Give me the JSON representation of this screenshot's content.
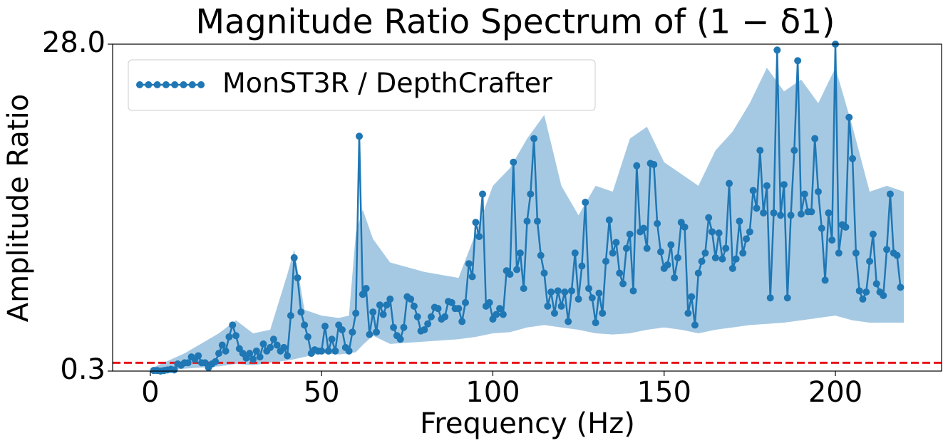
{
  "chart_data": {
    "type": "line",
    "title": "Magnitude Ratio Spectrum of (1 − δ1)",
    "xlabel": "Frequency (Hz)",
    "ylabel": "Amplitude Ratio",
    "xlim": [
      -11,
      231
    ],
    "ylim": [
      0.3,
      28
    ],
    "xticks": [
      0,
      50,
      100,
      150,
      200
    ],
    "yticks": [
      0.3,
      {
        "value": 28,
        "label": "28.0"
      }
    ],
    "legend": "upper left",
    "reference_line": {
      "value": 1,
      "color": "#e8141c"
    },
    "band": {
      "color": "#a6c9e3",
      "x": [
        0,
        10,
        20,
        25,
        30,
        35,
        40,
        42,
        45,
        50,
        55,
        58,
        60,
        62,
        65,
        70,
        80,
        90,
        95,
        100,
        105,
        110,
        115,
        120,
        125,
        130,
        135,
        140,
        145,
        150,
        155,
        160,
        165,
        170,
        175,
        180,
        185,
        190,
        195,
        200,
        205,
        210,
        215,
        220
      ],
      "upper": [
        0.5,
        1.8,
        3.5,
        4.6,
        3.5,
        3.8,
        8.5,
        10.6,
        5.5,
        5.0,
        4.8,
        5.0,
        12,
        14,
        11.5,
        9.5,
        8.7,
        8.2,
        12,
        16,
        17.5,
        20,
        22,
        16,
        13.5,
        16,
        15.5,
        20,
        21,
        18,
        17,
        16,
        19,
        20.6,
        23,
        26,
        24,
        25,
        23,
        26,
        21,
        15.5,
        16,
        15.5
      ],
      "lower": [
        0.3,
        0.5,
        0.7,
        0.9,
        0.8,
        1.0,
        1.2,
        1.3,
        1.5,
        1.8,
        1.7,
        1.8,
        1.9,
        2.5,
        3.3,
        2.6,
        2.8,
        3.0,
        3.2,
        3.5,
        3.6,
        4.0,
        4.2,
        4.0,
        3.8,
        3.5,
        3.4,
        3.5,
        3.8,
        4.0,
        3.8,
        3.5,
        3.8,
        4.0,
        4.2,
        4.3,
        4.4,
        4.6,
        4.8,
        5.0,
        4.6,
        4.4,
        4.4,
        4.4
      ]
    },
    "series": [
      {
        "name": "MonST3R / DepthCrafter",
        "color": "#1f77b4",
        "x": [
          1,
          2,
          3,
          4,
          5,
          6,
          7,
          8,
          9,
          10,
          11,
          12,
          13,
          14,
          15,
          16,
          17,
          18,
          19,
          20,
          21,
          22,
          23,
          24,
          25,
          26,
          27,
          28,
          29,
          30,
          31,
          32,
          33,
          34,
          35,
          36,
          37,
          38,
          39,
          40,
          41,
          42,
          43,
          44,
          45,
          46,
          47,
          48,
          49,
          50,
          51,
          52,
          53,
          54,
          55,
          56,
          57,
          58,
          59,
          60,
          61,
          62,
          63,
          64,
          65,
          66,
          67,
          68,
          69,
          70,
          71,
          72,
          73,
          74,
          75,
          76,
          77,
          78,
          79,
          80,
          81,
          82,
          83,
          84,
          85,
          86,
          87,
          88,
          89,
          90,
          91,
          92,
          93,
          94,
          95,
          96,
          97,
          98,
          99,
          100,
          101,
          102,
          103,
          104,
          105,
          106,
          107,
          108,
          109,
          110,
          111,
          112,
          113,
          114,
          115,
          116,
          117,
          118,
          119,
          120,
          121,
          122,
          123,
          124,
          125,
          126,
          127,
          128,
          129,
          130,
          131,
          132,
          133,
          134,
          135,
          136,
          137,
          138,
          139,
          140,
          141,
          142,
          143,
          144,
          145,
          146,
          147,
          148,
          149,
          150,
          151,
          152,
          153,
          154,
          155,
          156,
          157,
          158,
          159,
          160,
          161,
          162,
          163,
          164,
          165,
          166,
          167,
          168,
          169,
          170,
          171,
          172,
          173,
          174,
          175,
          176,
          177,
          178,
          179,
          180,
          181,
          182,
          183,
          184,
          185,
          186,
          187,
          188,
          189,
          190,
          191,
          192,
          193,
          194,
          195,
          196,
          197,
          198,
          199,
          200,
          201,
          202,
          203,
          204,
          205,
          206,
          207,
          208,
          209,
          210,
          211,
          212,
          213,
          214,
          215,
          216,
          217,
          218,
          219
        ],
        "values": [
          0.35,
          0.35,
          0.3,
          0.35,
          0.4,
          0.45,
          0.4,
          0.9,
          0.8,
          1.0,
          1.0,
          1.5,
          1.3,
          1.6,
          1.0,
          1.0,
          0.6,
          0.9,
          1.1,
          1.8,
          2.5,
          2.0,
          3.2,
          4.2,
          3.3,
          2.2,
          1.8,
          1.4,
          1.8,
          1.3,
          2.0,
          1.5,
          2.6,
          2.0,
          2.3,
          3.0,
          2.5,
          2.0,
          2.3,
          1.6,
          5.0,
          9.9,
          8.2,
          5.3,
          4.2,
          3.2,
          1.8,
          2.1,
          2.0,
          2.0,
          4.1,
          2.0,
          3.0,
          2.0,
          4.2,
          3.8,
          2.3,
          2.0,
          3.6,
          5.2,
          20.2,
          6.8,
          7.3,
          3.4,
          5.3,
          3.6,
          5.9,
          5.1,
          5.9,
          6.4,
          4.0,
          3.3,
          3.0,
          4.0,
          6.6,
          6.4,
          5.8,
          4.9,
          3.7,
          3.8,
          4.3,
          4.9,
          5.7,
          5.6,
          4.7,
          4.9,
          6.2,
          6.1,
          5.6,
          5.6,
          4.5,
          6.1,
          9.4,
          8.3,
          12.9,
          11.7,
          15.3,
          5.8,
          6.1,
          4.7,
          5.1,
          5.6,
          5.1,
          8.8,
          8.5,
          18.0,
          8.9,
          10.3,
          7.3,
          13.0,
          15.3,
          20.0,
          13.0,
          10.1,
          8.6,
          5.8,
          7.0,
          5.2,
          7.1,
          5.8,
          7.0,
          4.5,
          7.1,
          10.3,
          6.4,
          9.2,
          14.6,
          7.3,
          6.5,
          4.4,
          6.9,
          5.2,
          9.6,
          13.1,
          10.3,
          11.2,
          8.6,
          7.7,
          10.7,
          11.9,
          7.1,
          17.7,
          12.1,
          12.4,
          10.7,
          17.9,
          17.8,
          12.8,
          10.4,
          9.0,
          9.3,
          11.0,
          8.2,
          9.9,
          12.9,
          12.5,
          5.2,
          6.6,
          4.2,
          8.6,
          9.6,
          10.3,
          13.3,
          12.1,
          9.9,
          12.0,
          9.8,
          10.7,
          16.2,
          9.0,
          9.8,
          13.0,
          10.3,
          11.5,
          12.1,
          15.6,
          14.1,
          19.0,
          13.7,
          16.0,
          6.5,
          13.7,
          27.5,
          13.5,
          16.1,
          6.5,
          13.5,
          19.0,
          26.6,
          13.6,
          15.3,
          13.8,
          13.8,
          20.0,
          15.5,
          12.4,
          8.0,
          13.7,
          11.4,
          28.0,
          10.3,
          12.7,
          12.5,
          21.8,
          18.3,
          10.3,
          7.1,
          6.4,
          7.0,
          9.6,
          11.9,
          7.7,
          7.0,
          6.7,
          10.6,
          15.3,
          10.3,
          10.1,
          7.4
        ]
      }
    ]
  }
}
